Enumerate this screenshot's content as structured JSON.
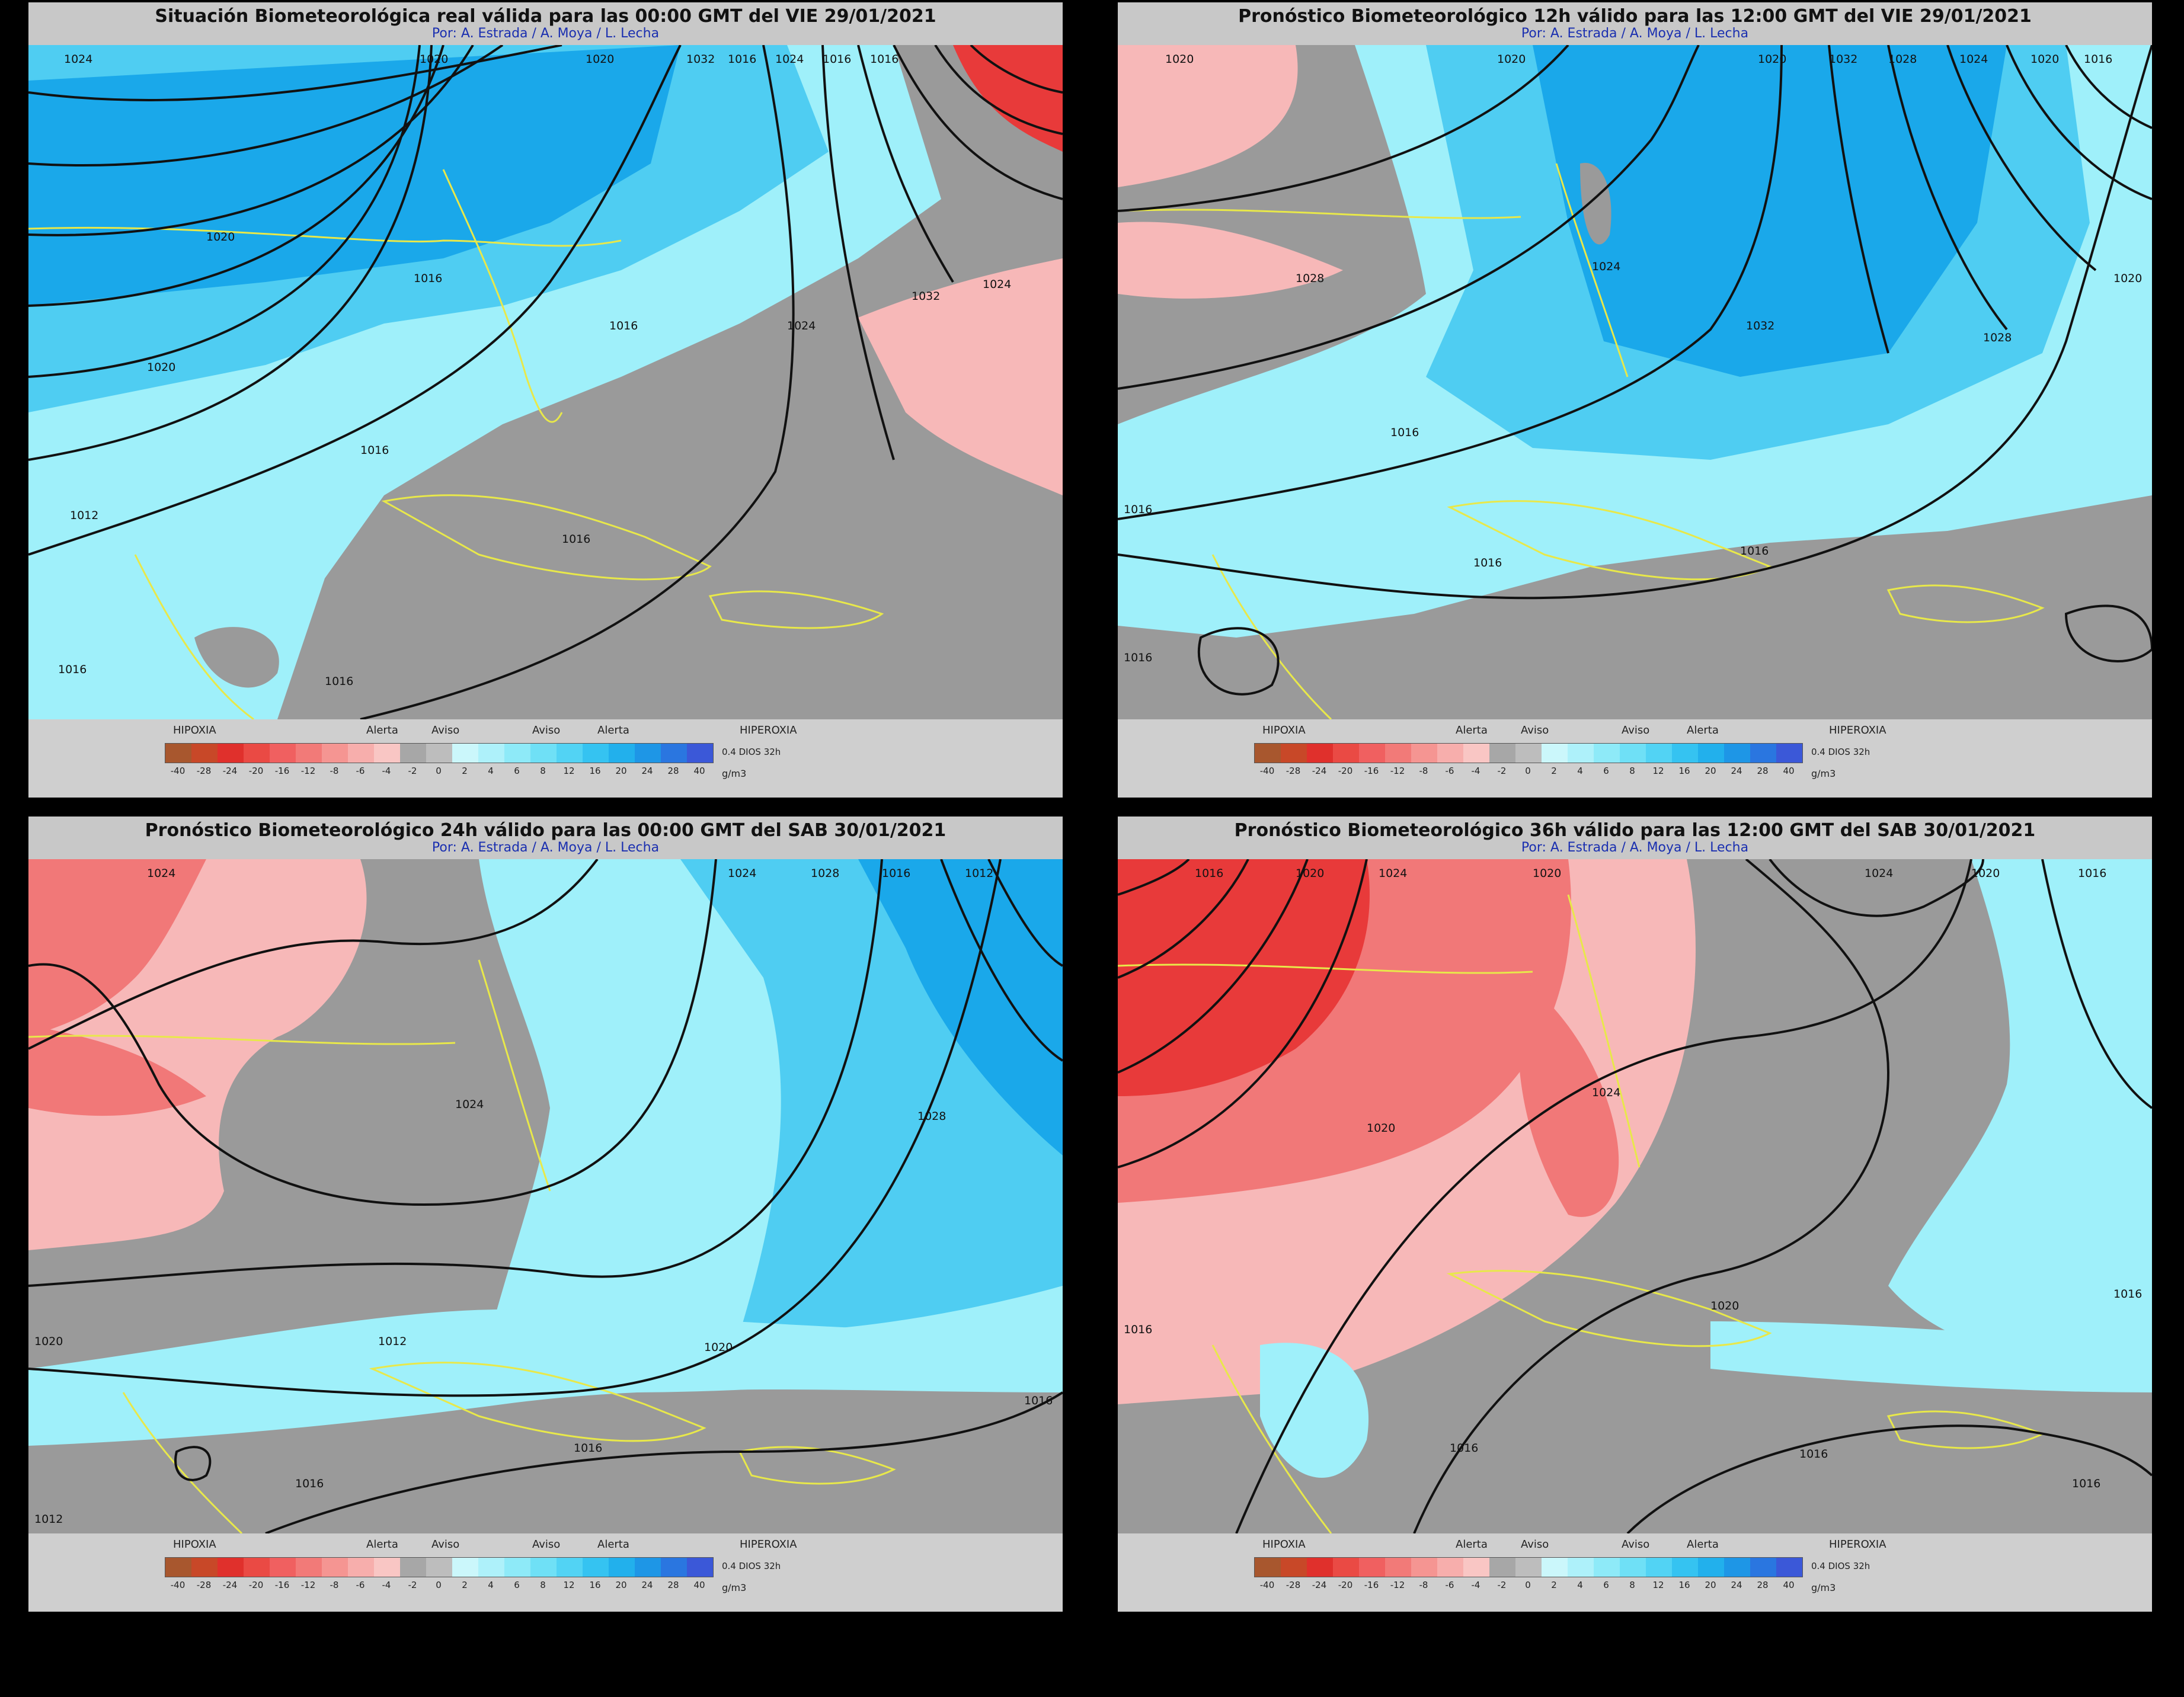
{
  "colors": {
    "gray": "#9a9a9a",
    "blue_light": "#9ff0fa",
    "blue_mid": "#4fcdf2",
    "blue_deep": "#1aa8ea",
    "red_light": "#f7b8b8",
    "red_mid": "#f17878",
    "red_deep": "#e83a3a",
    "coast": "#e8e84a"
  },
  "panels": [
    {
      "title": "Situación Biometeorológica real válida para las 00:00 GMT del VIE 29/01/2021",
      "subtitle": "Por: A. Estrada / A. Moya / L. Lecha",
      "isobar_labels": [
        "1024",
        "1020",
        "1020",
        "1032",
        "1016",
        "1024",
        "1016",
        "1016",
        "1020",
        "1016",
        "1016",
        "1024",
        "1032",
        "1024",
        "1020",
        "1016",
        "1012",
        "1016",
        "1016",
        "1016"
      ]
    },
    {
      "title": "Pronóstico Biometeorológico 12h válido para las 12:00 GMT del VIE 29/01/2021",
      "subtitle": "Por: A. Estrada / A. Moya / L. Lecha",
      "isobar_labels": [
        "1020",
        "1020",
        "1020",
        "1032",
        "1028",
        "1024",
        "1020",
        "1016",
        "1028",
        "1024",
        "1032",
        "1028",
        "1020",
        "1016",
        "1016",
        "1016",
        "1016",
        "1016"
      ]
    },
    {
      "title": "Pronóstico Biometeorológico 24h válido para las 00:00 GMT del SAB 30/01/2021",
      "subtitle": "Por: A. Estrada / A. Moya / L. Lecha",
      "isobar_labels": [
        "1024",
        "1024",
        "1028",
        "1016",
        "1012",
        "1024",
        "1028",
        "1020",
        "1012",
        "1020",
        "1016",
        "1016",
        "1016",
        "1012"
      ]
    },
    {
      "title": "Pronóstico Biometeorológico 36h válido para las 12:00 GMT del SAB 30/01/2021",
      "subtitle": "Por: A. Estrada / A. Moya / L. Lecha",
      "isobar_labels": [
        "1016",
        "1020",
        "1024",
        "1020",
        "1024",
        "1020",
        "1016",
        "1024",
        "1020",
        "1020",
        "1016",
        "1016",
        "1016",
        "1016",
        "1016"
      ]
    }
  ],
  "legend": {
    "hipoxia": "HIPOXIA",
    "hiperoxia": "HIPEROXIA",
    "alerta": "Alerta",
    "aviso": "Aviso",
    "note": "0.4 DIOS 32h",
    "unit": "g/m3",
    "ticks": [
      "-40",
      "-28",
      "-24",
      "-20",
      "-16",
      "-12",
      "-8",
      "-6",
      "-4",
      "-2",
      "0",
      "2",
      "4",
      "6",
      "8",
      "12",
      "16",
      "20",
      "24",
      "28",
      "40"
    ],
    "swatches": [
      "#a8572e",
      "#c84828",
      "#e0302c",
      "#ea4a44",
      "#f06060",
      "#f27a78",
      "#f59592",
      "#f7aeac",
      "#f9c6c4",
      "#a7a7a7",
      "#bdbdbd",
      "#cbf7fb",
      "#aef1fa",
      "#8eeaf8",
      "#6fe0f6",
      "#52d3f4",
      "#35c3f1",
      "#22b0ec",
      "#1e96e6",
      "#2a76e0",
      "#3b58d8"
    ]
  }
}
